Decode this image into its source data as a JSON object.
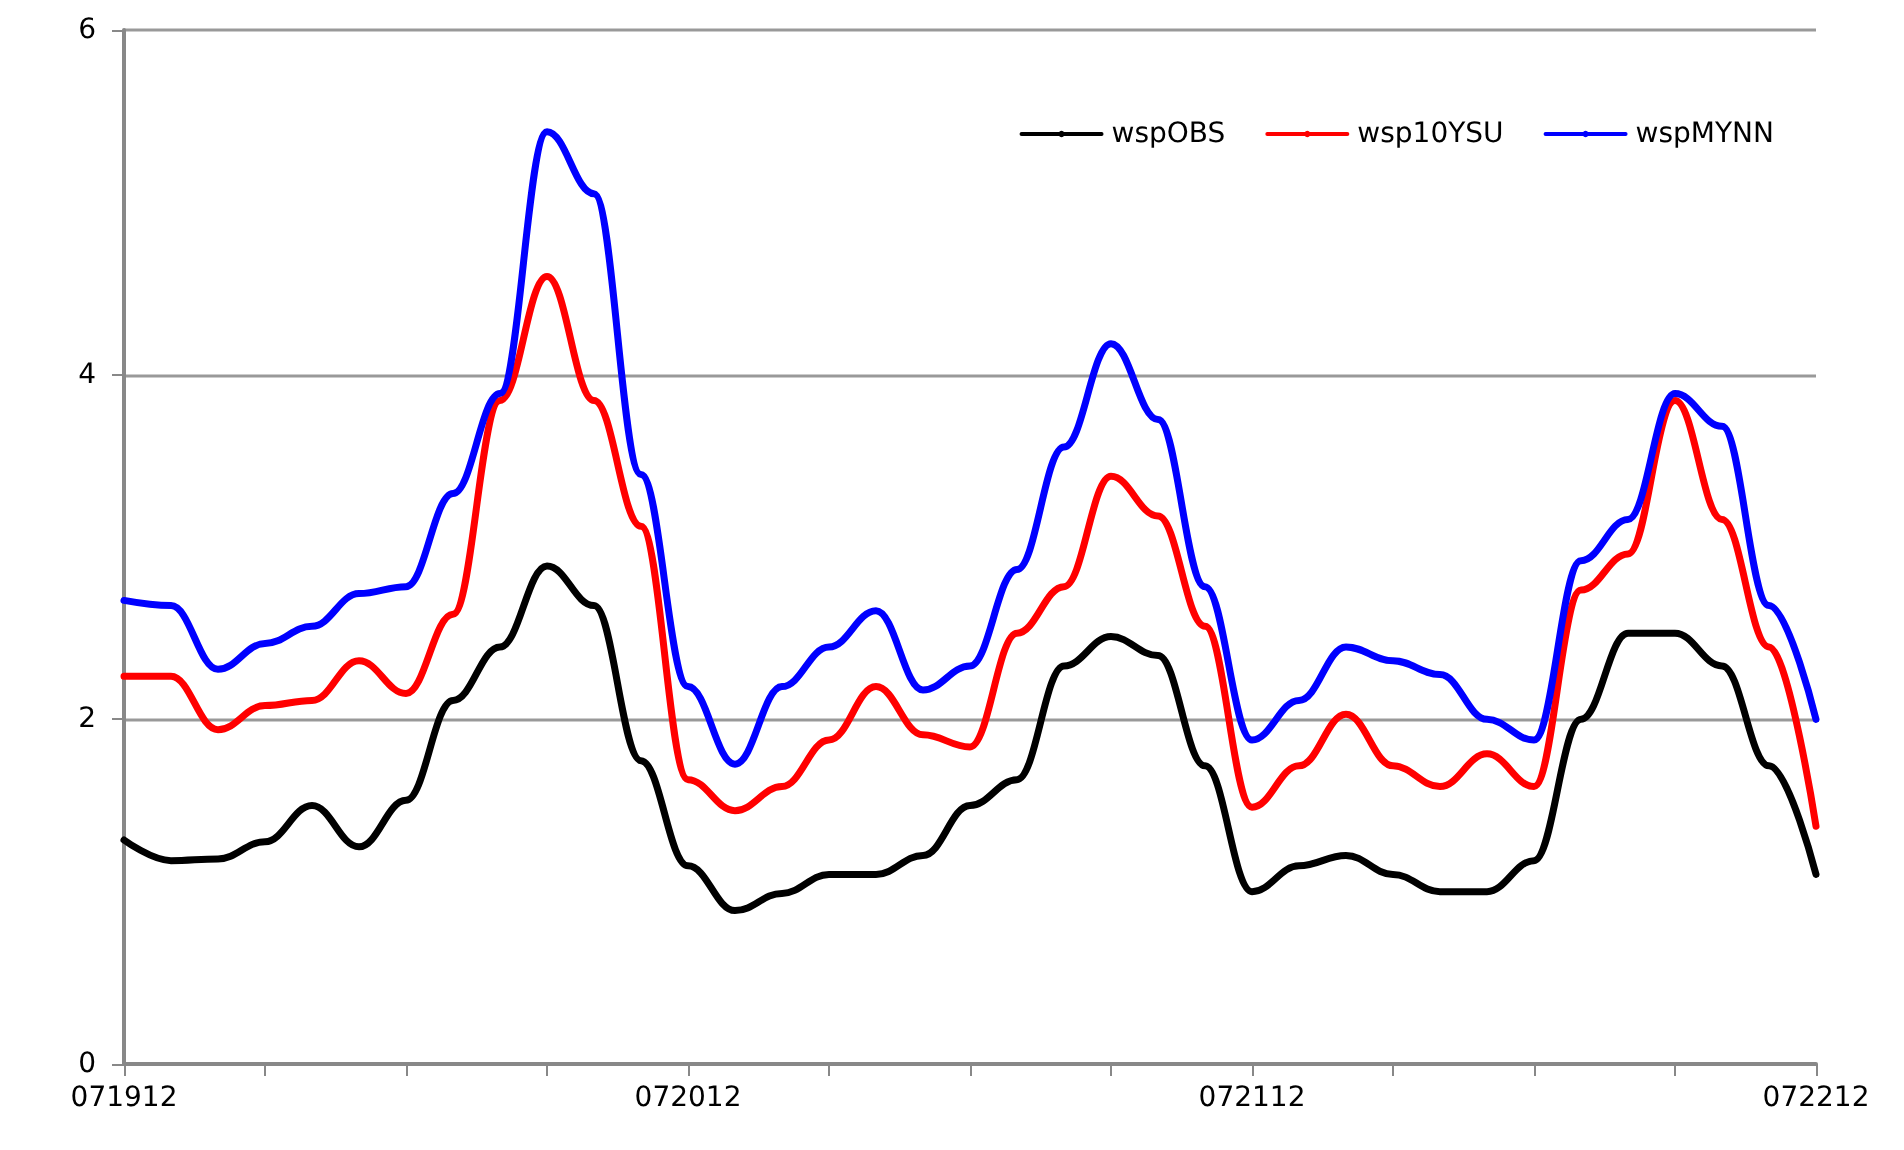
{
  "chart_data": {
    "type": "line",
    "categories": [
      "071912",
      null,
      null,
      null,
      null,
      null,
      null,
      null,
      null,
      null,
      null,
      null,
      "072012",
      null,
      null,
      null,
      null,
      null,
      null,
      null,
      null,
      null,
      null,
      null,
      "072112",
      null,
      null,
      null,
      null,
      null,
      null,
      null,
      null,
      null,
      null,
      null,
      "072212"
    ],
    "series": [
      {
        "name": "wspOBS",
        "color": "#000000",
        "values": [
          1.3,
          1.18,
          1.19,
          1.29,
          1.5,
          1.26,
          1.53,
          2.11,
          2.42,
          2.89,
          2.66,
          1.76,
          1.15,
          0.89,
          0.99,
          1.1,
          1.1,
          1.21,
          1.5,
          1.65,
          2.31,
          2.48,
          2.37,
          1.73,
          1.0,
          1.15,
          1.21,
          1.1,
          1.0,
          1.0,
          1.18,
          2.0,
          2.5,
          2.5,
          2.31,
          1.73,
          1.1
        ]
      },
      {
        "name": "wsp10YSU",
        "color": "#ff0000",
        "values": [
          2.25,
          2.25,
          1.94,
          2.08,
          2.11,
          2.34,
          2.15,
          2.61,
          3.85,
          4.57,
          3.85,
          3.12,
          1.65,
          1.47,
          1.61,
          1.88,
          2.19,
          1.91,
          1.84,
          2.5,
          2.77,
          3.41,
          3.18,
          2.54,
          1.49,
          1.73,
          2.03,
          1.73,
          1.61,
          1.8,
          1.61,
          2.75,
          2.96,
          3.85,
          3.16,
          2.42,
          1.38
        ]
      },
      {
        "name": "wspMYNN",
        "color": "#0000ff",
        "values": [
          2.69,
          2.66,
          2.29,
          2.44,
          2.54,
          2.73,
          2.77,
          3.31,
          3.89,
          5.41,
          5.05,
          3.42,
          2.19,
          1.74,
          2.19,
          2.42,
          2.63,
          2.17,
          2.31,
          2.87,
          3.58,
          4.18,
          3.74,
          2.77,
          1.88,
          2.11,
          2.42,
          2.34,
          2.26,
          2.0,
          1.88,
          2.92,
          3.16,
          3.89,
          3.7,
          2.66,
          2.0
        ]
      }
    ],
    "ylim": [
      0,
      6
    ],
    "yticks": [
      0,
      2,
      4,
      6
    ],
    "grid": "y",
    "legend": "top right",
    "marker": "none",
    "line_style": "solid"
  }
}
